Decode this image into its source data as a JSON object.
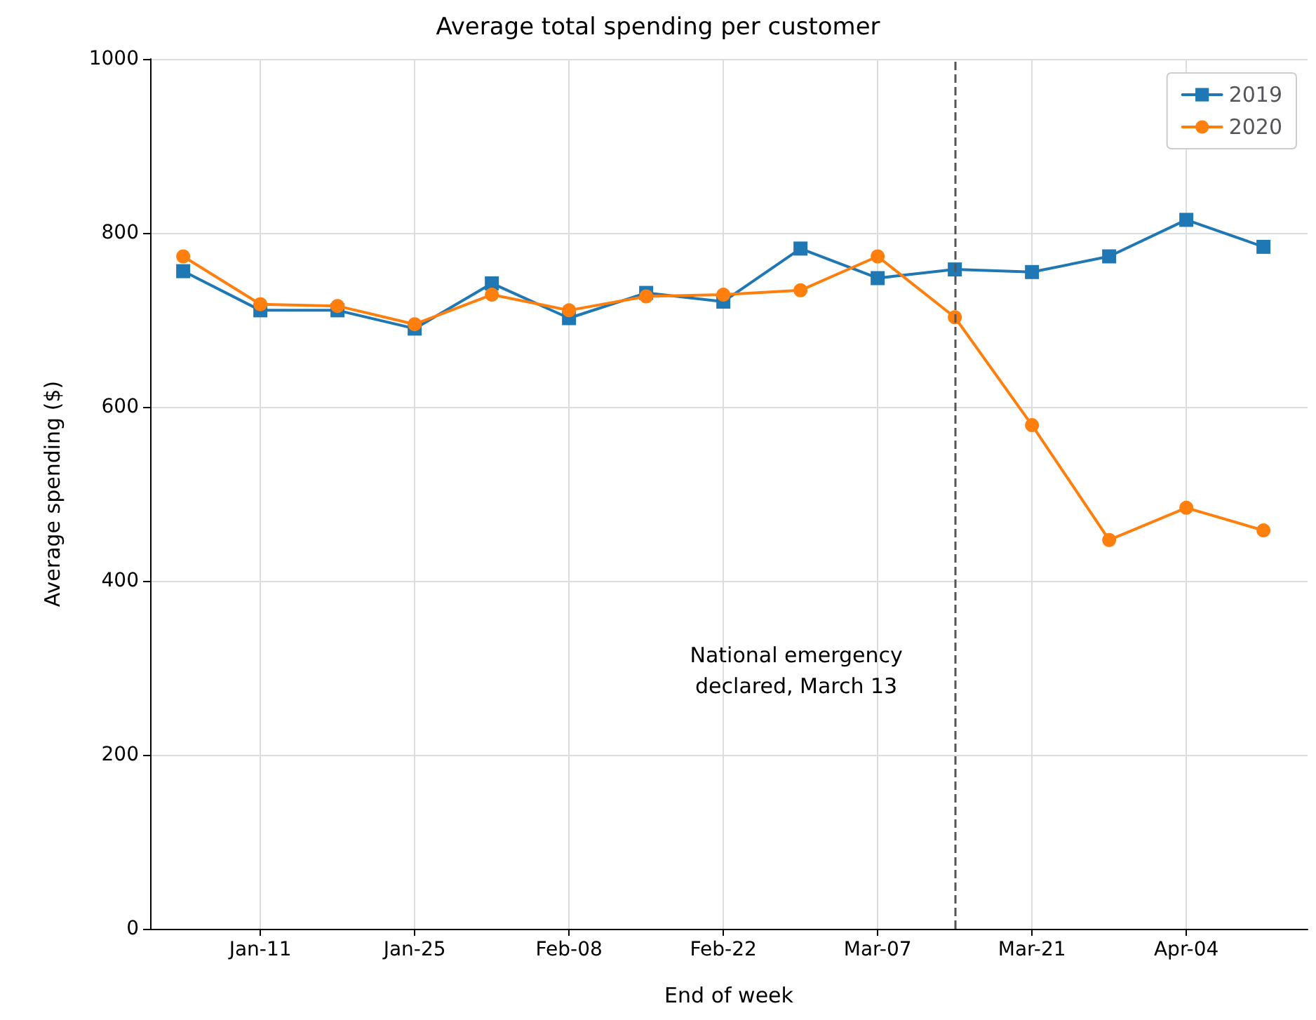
{
  "chart_data": {
    "type": "line",
    "title": "Average total spending per customer",
    "xlabel": "End of week",
    "ylabel": "Average spending ($)",
    "x": [
      "--01-04",
      "--01-11",
      "--01-18",
      "--01-25",
      "--02-01",
      "--02-08",
      "--02-15",
      "--02-22",
      "--02-29",
      "--03-07",
      "--03-14",
      "--03-21",
      "--03-28",
      "--04-04",
      "--04-11"
    ],
    "series": [
      {
        "name": "2019",
        "color": "#1f77b4",
        "marker": "square",
        "values": [
          756,
          711,
          711,
          690,
          742,
          702,
          731,
          721,
          782,
          748,
          758,
          755,
          773,
          815,
          784
        ]
      },
      {
        "name": "2020",
        "color": "#ff7f0e",
        "marker": "circle",
        "values": [
          773,
          718,
          716,
          695,
          729,
          711,
          727,
          729,
          734,
          773,
          703,
          579,
          447,
          484,
          458
        ]
      }
    ],
    "xlim": [
      "--01-01",
      "--04-15"
    ],
    "xticks": [
      {
        "value": "--01-11",
        "label": "Jan-11"
      },
      {
        "value": "--01-25",
        "label": "Jan-25"
      },
      {
        "value": "--02-08",
        "label": "Feb-08"
      },
      {
        "value": "--02-22",
        "label": "Feb-22"
      },
      {
        "value": "--03-07",
        "label": "Mar-07"
      },
      {
        "value": "--03-21",
        "label": "Mar-21"
      },
      {
        "value": "--04-04",
        "label": "Apr-04"
      }
    ],
    "ylim": [
      0,
      1000
    ],
    "yticks": [
      0,
      200,
      400,
      600,
      800,
      1000
    ],
    "ref_lines": [
      {
        "axis": "x",
        "value": "--03-14",
        "label": "National emergency\ndeclared, March 13",
        "color": "#555555",
        "line_style": "dashed"
      }
    ],
    "grid": true,
    "legend": "top right",
    "line_style": "solid"
  }
}
